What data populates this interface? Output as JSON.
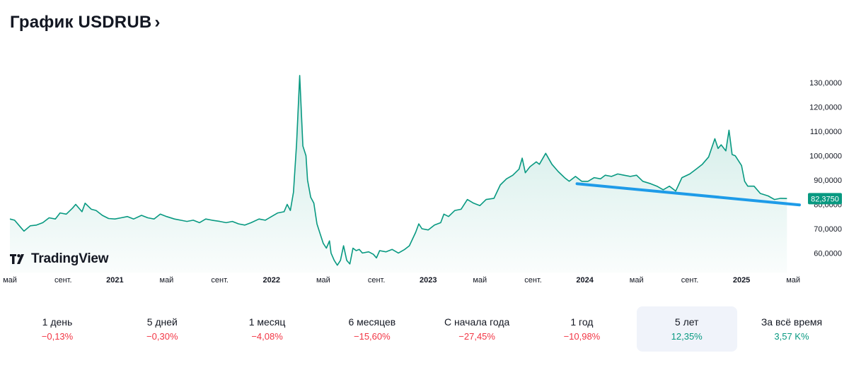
{
  "header": {
    "title": "График USDRUB",
    "chevron": "›"
  },
  "logo": {
    "text": "TradingView"
  },
  "periods": [
    {
      "label": "1 день",
      "value": "−0,13%",
      "sign": "neg"
    },
    {
      "label": "5 дней",
      "value": "−0,30%",
      "sign": "neg"
    },
    {
      "label": "1 месяц",
      "value": "−4,08%",
      "sign": "neg"
    },
    {
      "label": "6 месяцев",
      "value": "−15,60%",
      "sign": "neg"
    },
    {
      "label": "С начала года",
      "value": "−27,45%",
      "sign": "neg"
    },
    {
      "label": "1 год",
      "value": "−10,98%",
      "sign": "neg"
    },
    {
      "label": "5 лет",
      "value": "12,35%",
      "sign": "pos",
      "active": true
    },
    {
      "label": "За всё время",
      "value": "3,57 K%",
      "sign": "pos"
    }
  ],
  "colors": {
    "line": "#089981",
    "trend": "#1e9be8",
    "neg": "#f23645",
    "pos": "#089981"
  },
  "chart_data": {
    "type": "area",
    "title": "График USDRUB",
    "xlabel": "",
    "ylabel": "",
    "ylim": [
      52,
      135
    ],
    "xlim": [
      2020.33,
      2025.37
    ],
    "y_ticks": [
      60,
      70,
      80,
      90,
      100,
      110,
      120,
      130
    ],
    "y_tick_labels": [
      "60,0000",
      "70,0000",
      "80,0000",
      "90,0000",
      "100,0000",
      "110,0000",
      "120,0000",
      "130,0000"
    ],
    "x_ticks": [
      {
        "x": 2020.33,
        "label": "май"
      },
      {
        "x": 2020.67,
        "label": "сент."
      },
      {
        "x": 2021.0,
        "label": "2021"
      },
      {
        "x": 2021.33,
        "label": "май"
      },
      {
        "x": 2021.67,
        "label": "сент."
      },
      {
        "x": 2022.0,
        "label": "2022"
      },
      {
        "x": 2022.33,
        "label": "май"
      },
      {
        "x": 2022.67,
        "label": "сент."
      },
      {
        "x": 2023.0,
        "label": "2023"
      },
      {
        "x": 2023.33,
        "label": "май"
      },
      {
        "x": 2023.67,
        "label": "сент."
      },
      {
        "x": 2024.0,
        "label": "2024"
      },
      {
        "x": 2024.33,
        "label": "май"
      },
      {
        "x": 2024.67,
        "label": "сент."
      },
      {
        "x": 2025.0,
        "label": "2025"
      },
      {
        "x": 2025.33,
        "label": "май"
      }
    ],
    "last_value": 82.375,
    "last_label": "82,3750",
    "series": [
      {
        "name": "USDRUB",
        "points": [
          [
            2020.33,
            74.0
          ],
          [
            2020.36,
            73.5
          ],
          [
            2020.4,
            70.5
          ],
          [
            2020.42,
            69.0
          ],
          [
            2020.46,
            71.2
          ],
          [
            2020.5,
            71.5
          ],
          [
            2020.54,
            72.5
          ],
          [
            2020.58,
            74.5
          ],
          [
            2020.62,
            74.0
          ],
          [
            2020.65,
            76.5
          ],
          [
            2020.69,
            76.0
          ],
          [
            2020.73,
            78.5
          ],
          [
            2020.75,
            80.0
          ],
          [
            2020.79,
            77.0
          ],
          [
            2020.81,
            80.5
          ],
          [
            2020.85,
            78.0
          ],
          [
            2020.88,
            77.5
          ],
          [
            2020.92,
            75.5
          ],
          [
            2020.96,
            74.2
          ],
          [
            2021.0,
            74.0
          ],
          [
            2021.04,
            74.5
          ],
          [
            2021.08,
            75.0
          ],
          [
            2021.12,
            74.0
          ],
          [
            2021.17,
            75.5
          ],
          [
            2021.21,
            74.5
          ],
          [
            2021.25,
            74.0
          ],
          [
            2021.29,
            76.0
          ],
          [
            2021.33,
            75.0
          ],
          [
            2021.38,
            74.0
          ],
          [
            2021.42,
            73.5
          ],
          [
            2021.46,
            73.0
          ],
          [
            2021.5,
            73.5
          ],
          [
            2021.54,
            72.5
          ],
          [
            2021.58,
            74.0
          ],
          [
            2021.62,
            73.5
          ],
          [
            2021.67,
            73.0
          ],
          [
            2021.71,
            72.5
          ],
          [
            2021.75,
            73.0
          ],
          [
            2021.79,
            72.0
          ],
          [
            2021.83,
            71.5
          ],
          [
            2021.87,
            72.5
          ],
          [
            2021.92,
            74.0
          ],
          [
            2021.96,
            73.5
          ],
          [
            2022.0,
            75.0
          ],
          [
            2022.04,
            76.5
          ],
          [
            2022.08,
            77.0
          ],
          [
            2022.1,
            80.0
          ],
          [
            2022.12,
            77.5
          ],
          [
            2022.14,
            85.0
          ],
          [
            2022.16,
            105.0
          ],
          [
            2022.18,
            133.0
          ],
          [
            2022.2,
            104.0
          ],
          [
            2022.22,
            100.0
          ],
          [
            2022.23,
            90.0
          ],
          [
            2022.25,
            83.0
          ],
          [
            2022.27,
            80.5
          ],
          [
            2022.29,
            72.0
          ],
          [
            2022.31,
            68.0
          ],
          [
            2022.33,
            64.0
          ],
          [
            2022.35,
            62.0
          ],
          [
            2022.37,
            65.0
          ],
          [
            2022.38,
            60.0
          ],
          [
            2022.4,
            57.0
          ],
          [
            2022.42,
            55.0
          ],
          [
            2022.44,
            57.0
          ],
          [
            2022.46,
            63.0
          ],
          [
            2022.48,
            57.0
          ],
          [
            2022.5,
            55.5
          ],
          [
            2022.52,
            62.0
          ],
          [
            2022.54,
            61.0
          ],
          [
            2022.56,
            61.5
          ],
          [
            2022.58,
            60.0
          ],
          [
            2022.62,
            60.5
          ],
          [
            2022.65,
            59.5
          ],
          [
            2022.67,
            58.0
          ],
          [
            2022.69,
            61.0
          ],
          [
            2022.73,
            60.5
          ],
          [
            2022.77,
            61.5
          ],
          [
            2022.81,
            60.0
          ],
          [
            2022.85,
            61.5
          ],
          [
            2022.88,
            63.0
          ],
          [
            2022.92,
            68.5
          ],
          [
            2022.94,
            72.0
          ],
          [
            2022.96,
            70.0
          ],
          [
            2023.0,
            69.5
          ],
          [
            2023.04,
            71.5
          ],
          [
            2023.08,
            72.5
          ],
          [
            2023.1,
            76.0
          ],
          [
            2023.13,
            75.0
          ],
          [
            2023.17,
            77.5
          ],
          [
            2023.21,
            78.0
          ],
          [
            2023.25,
            82.0
          ],
          [
            2023.29,
            80.5
          ],
          [
            2023.33,
            79.5
          ],
          [
            2023.37,
            82.0
          ],
          [
            2023.42,
            82.5
          ],
          [
            2023.46,
            88.0
          ],
          [
            2023.5,
            90.5
          ],
          [
            2023.54,
            92.0
          ],
          [
            2023.58,
            94.5
          ],
          [
            2023.6,
            99.0
          ],
          [
            2023.62,
            93.0
          ],
          [
            2023.65,
            95.5
          ],
          [
            2023.69,
            97.5
          ],
          [
            2023.71,
            96.5
          ],
          [
            2023.75,
            101.0
          ],
          [
            2023.79,
            96.5
          ],
          [
            2023.83,
            93.5
          ],
          [
            2023.87,
            91.0
          ],
          [
            2023.9,
            89.5
          ],
          [
            2023.94,
            91.5
          ],
          [
            2023.98,
            89.5
          ],
          [
            2024.02,
            89.5
          ],
          [
            2024.06,
            91.0
          ],
          [
            2024.1,
            90.5
          ],
          [
            2024.13,
            92.0
          ],
          [
            2024.17,
            91.5
          ],
          [
            2024.21,
            92.5
          ],
          [
            2024.25,
            92.0
          ],
          [
            2024.29,
            91.5
          ],
          [
            2024.33,
            92.0
          ],
          [
            2024.37,
            89.5
          ],
          [
            2024.42,
            88.5
          ],
          [
            2024.46,
            87.5
          ],
          [
            2024.5,
            86.0
          ],
          [
            2024.54,
            87.5
          ],
          [
            2024.58,
            85.5
          ],
          [
            2024.62,
            91.0
          ],
          [
            2024.67,
            92.5
          ],
          [
            2024.71,
            94.5
          ],
          [
            2024.75,
            96.5
          ],
          [
            2024.79,
            99.5
          ],
          [
            2024.83,
            107.0
          ],
          [
            2024.85,
            103.0
          ],
          [
            2024.87,
            104.5
          ],
          [
            2024.9,
            102.0
          ],
          [
            2024.92,
            110.5
          ],
          [
            2024.94,
            100.5
          ],
          [
            2024.96,
            100.0
          ],
          [
            2025.0,
            96.0
          ],
          [
            2025.02,
            89.5
          ],
          [
            2025.04,
            87.5
          ],
          [
            2025.08,
            87.5
          ],
          [
            2025.12,
            84.5
          ],
          [
            2025.17,
            83.5
          ],
          [
            2025.21,
            82.0
          ],
          [
            2025.25,
            82.5
          ],
          [
            2025.29,
            82.4
          ]
        ]
      }
    ],
    "trendline": {
      "points": [
        [
          2023.95,
          88.5
        ],
        [
          2025.37,
          79.8
        ]
      ]
    }
  }
}
